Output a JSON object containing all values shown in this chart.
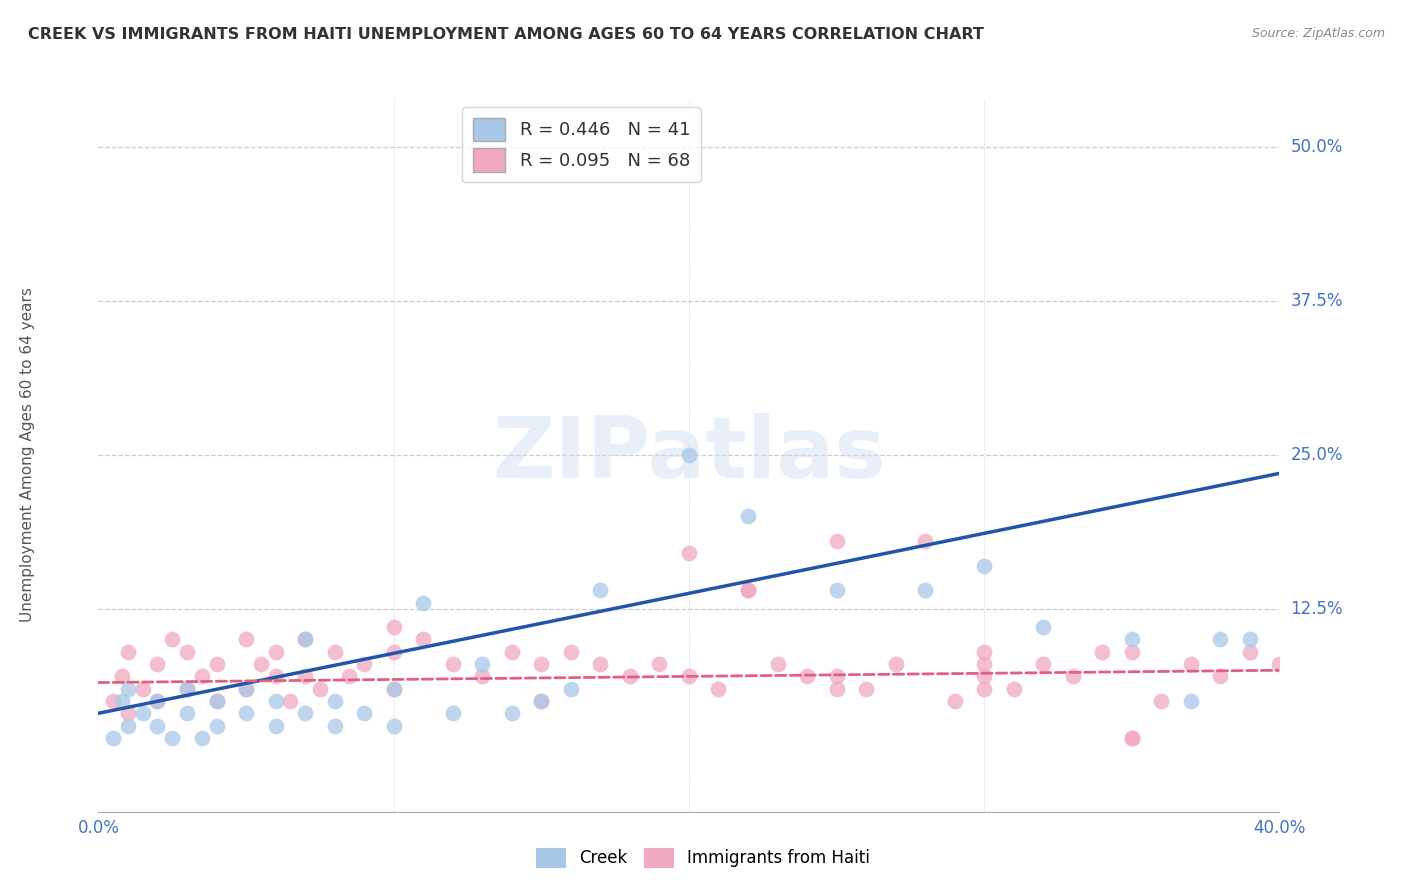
{
  "title": "CREEK VS IMMIGRANTS FROM HAITI UNEMPLOYMENT AMONG AGES 60 TO 64 YEARS CORRELATION CHART",
  "source": "Source: ZipAtlas.com",
  "ylabel": "Unemployment Among Ages 60 to 64 years",
  "ytick_labels": [
    "50.0%",
    "37.5%",
    "25.0%",
    "12.5%"
  ],
  "ytick_values": [
    0.5,
    0.375,
    0.25,
    0.125
  ],
  "xmin": 0.0,
  "xmax": 0.4,
  "ymin": -0.04,
  "ymax": 0.54,
  "creek_color": "#a8c8e8",
  "creek_line_color": "#2255aa",
  "haiti_color": "#f0a8c0",
  "haiti_line_color": "#e06080",
  "watermark_text": "ZIPatlas",
  "creek_R": 0.446,
  "creek_N": 41,
  "haiti_R": 0.095,
  "haiti_N": 68,
  "creek_line_x0": 0.0,
  "creek_line_y0": 0.04,
  "creek_line_x1": 0.4,
  "creek_line_y1": 0.235,
  "haiti_line_x0": 0.0,
  "haiti_line_y0": 0.065,
  "haiti_line_x1": 0.4,
  "haiti_line_y1": 0.075,
  "creek_scatter_x": [
    0.005,
    0.008,
    0.01,
    0.01,
    0.015,
    0.02,
    0.02,
    0.025,
    0.03,
    0.03,
    0.035,
    0.04,
    0.04,
    0.05,
    0.05,
    0.06,
    0.06,
    0.07,
    0.07,
    0.08,
    0.08,
    0.09,
    0.1,
    0.1,
    0.11,
    0.12,
    0.13,
    0.14,
    0.15,
    0.16,
    0.17,
    0.2,
    0.22,
    0.25,
    0.28,
    0.3,
    0.32,
    0.35,
    0.37,
    0.38,
    0.39
  ],
  "creek_scatter_y": [
    0.02,
    0.05,
    0.03,
    0.06,
    0.04,
    0.03,
    0.05,
    0.02,
    0.04,
    0.06,
    0.02,
    0.03,
    0.05,
    0.04,
    0.06,
    0.03,
    0.05,
    0.04,
    0.1,
    0.03,
    0.05,
    0.04,
    0.03,
    0.06,
    0.13,
    0.04,
    0.08,
    0.04,
    0.05,
    0.06,
    0.14,
    0.25,
    0.2,
    0.14,
    0.14,
    0.16,
    0.11,
    0.1,
    0.05,
    0.1,
    0.1
  ],
  "haiti_scatter_x": [
    0.005,
    0.008,
    0.01,
    0.01,
    0.015,
    0.02,
    0.02,
    0.025,
    0.03,
    0.03,
    0.035,
    0.04,
    0.04,
    0.05,
    0.05,
    0.055,
    0.06,
    0.06,
    0.065,
    0.07,
    0.07,
    0.075,
    0.08,
    0.085,
    0.09,
    0.1,
    0.1,
    0.11,
    0.12,
    0.13,
    0.14,
    0.15,
    0.16,
    0.17,
    0.18,
    0.19,
    0.2,
    0.21,
    0.22,
    0.23,
    0.24,
    0.25,
    0.26,
    0.27,
    0.28,
    0.29,
    0.3,
    0.3,
    0.31,
    0.32,
    0.33,
    0.34,
    0.35,
    0.36,
    0.37,
    0.38,
    0.39,
    0.22,
    0.25,
    0.3,
    0.35,
    0.1,
    0.15,
    0.2,
    0.25,
    0.3,
    0.35,
    0.4
  ],
  "haiti_scatter_y": [
    0.05,
    0.07,
    0.04,
    0.09,
    0.06,
    0.08,
    0.05,
    0.1,
    0.06,
    0.09,
    0.07,
    0.05,
    0.08,
    0.1,
    0.06,
    0.08,
    0.07,
    0.09,
    0.05,
    0.1,
    0.07,
    0.06,
    0.09,
    0.07,
    0.08,
    0.06,
    0.09,
    0.1,
    0.08,
    0.07,
    0.09,
    0.08,
    0.09,
    0.08,
    0.07,
    0.08,
    0.17,
    0.06,
    0.14,
    0.08,
    0.07,
    0.18,
    0.06,
    0.08,
    0.18,
    0.05,
    0.07,
    0.09,
    0.06,
    0.08,
    0.07,
    0.09,
    0.09,
    0.05,
    0.08,
    0.07,
    0.09,
    0.14,
    0.07,
    0.08,
    0.02,
    0.11,
    0.05,
    0.07,
    0.06,
    0.06,
    0.02,
    0.08
  ]
}
